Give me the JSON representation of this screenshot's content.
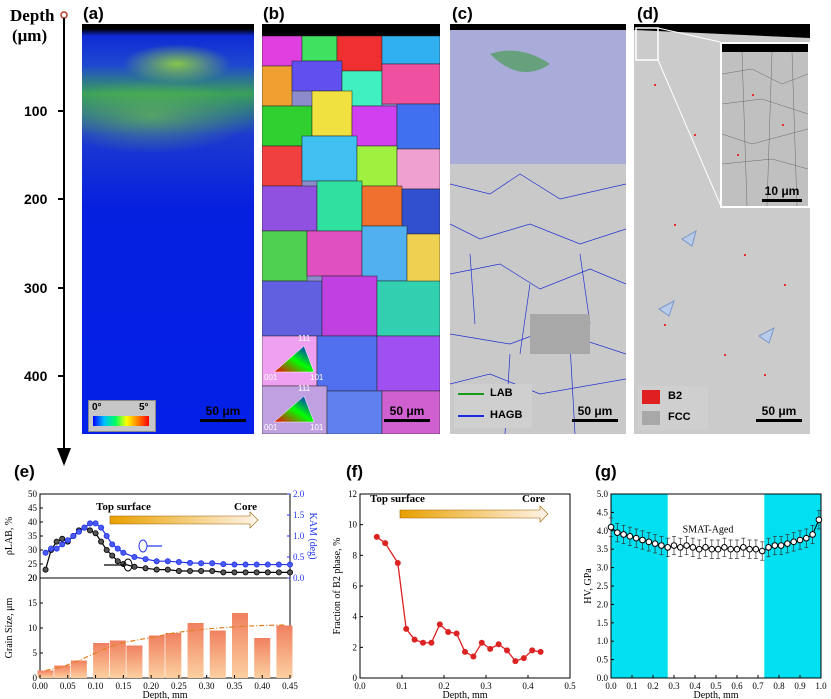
{
  "depth_axis": {
    "title_line1": "Depth",
    "title_line2": "(μm)",
    "ticks": [
      "100",
      "200",
      "300",
      "400"
    ]
  },
  "panels": {
    "a": {
      "label": "(a)",
      "scalebar": "50 μm",
      "kam_min": "0°",
      "kam_max": "5°"
    },
    "b": {
      "label": "(b)",
      "scalebar": "50 μm",
      "ipf": [
        "111",
        "001",
        "101"
      ]
    },
    "c": {
      "label": "(c)",
      "scalebar": "50 μm",
      "legend": [
        "LAB",
        "HAGB"
      ]
    },
    "d": {
      "label": "(d)",
      "scalebar": "50 μm",
      "inset_scalebar": "10 μm",
      "legend": [
        "B2",
        "FCC"
      ]
    }
  },
  "chart_data": [
    {
      "id": "e-top",
      "type": "line",
      "label": "(e)",
      "annotation_left": "Top surface",
      "annotation_right": "Core",
      "ylabel_left": "ρLAB, %",
      "ylabel_right": "KAM (deg)",
      "ylim_left": [
        20,
        50
      ],
      "ylim_right": [
        0,
        2.0
      ],
      "yticks_left": [
        "20",
        "25",
        "30",
        "35",
        "40",
        "45",
        "50"
      ],
      "yticks_right": [
        "0.0",
        "0.5",
        "1.0",
        "1.5",
        "2.0"
      ],
      "series": [
        {
          "name": "ρLAB",
          "color": "#000000",
          "x": [
            0.01,
            0.02,
            0.03,
            0.04,
            0.05,
            0.06,
            0.07,
            0.08,
            0.09,
            0.1,
            0.11,
            0.12,
            0.13,
            0.14,
            0.15,
            0.17,
            0.19,
            0.21,
            0.23,
            0.25,
            0.27,
            0.29,
            0.31,
            0.33,
            0.35,
            0.37,
            0.39,
            0.41,
            0.43,
            0.45
          ],
          "values": [
            23,
            30,
            33,
            34,
            33,
            35,
            37,
            38,
            37,
            36,
            33,
            30,
            28,
            26,
            25,
            24,
            23.5,
            23,
            23,
            22.5,
            22.5,
            22.5,
            22.5,
            22,
            22,
            22,
            22,
            22,
            22,
            22
          ]
        },
        {
          "name": "KAM",
          "color": "#2233ee",
          "x": [
            0.01,
            0.02,
            0.03,
            0.04,
            0.05,
            0.06,
            0.07,
            0.08,
            0.09,
            0.1,
            0.11,
            0.12,
            0.13,
            0.14,
            0.15,
            0.17,
            0.19,
            0.21,
            0.23,
            0.25,
            0.27,
            0.29,
            0.31,
            0.33,
            0.35,
            0.37,
            0.39,
            0.41,
            0.43,
            0.45
          ],
          "values": [
            0.6,
            0.7,
            0.7,
            0.8,
            0.9,
            1.0,
            1.1,
            1.2,
            1.3,
            1.3,
            1.2,
            1.0,
            0.8,
            0.7,
            0.6,
            0.5,
            0.45,
            0.4,
            0.4,
            0.38,
            0.36,
            0.35,
            0.35,
            0.33,
            0.32,
            0.32,
            0.32,
            0.32,
            0.32,
            0.32
          ]
        }
      ]
    },
    {
      "id": "e-bottom",
      "type": "bar",
      "xlabel": "Depth, mm",
      "ylabel": "Grain Size, μm",
      "xlim": [
        0,
        0.45
      ],
      "ylim": [
        0,
        20
      ],
      "xticks": [
        "0.00",
        "0.05",
        "0.10",
        "0.15",
        "0.20",
        "0.25",
        "0.30",
        "0.35",
        "0.40",
        "0.45"
      ],
      "yticks": [
        "0",
        "5",
        "10",
        "15",
        "20"
      ],
      "x": [
        0.01,
        0.04,
        0.07,
        0.11,
        0.14,
        0.17,
        0.21,
        0.24,
        0.28,
        0.32,
        0.36,
        0.4,
        0.44
      ],
      "values": [
        1.5,
        2.5,
        3.5,
        7,
        7.5,
        6.5,
        8.5,
        9,
        11,
        9.5,
        13,
        8,
        10.5
      ],
      "trend": [
        1.5,
        2.2,
        3.5,
        5.5,
        6.8,
        7.5,
        8.3,
        9,
        9.6,
        10,
        10.3,
        10.5,
        10.6
      ]
    },
    {
      "id": "f",
      "type": "line",
      "label": "(f)",
      "annotation_left": "Top surface",
      "annotation_right": "Core",
      "xlabel": "Depth, mm",
      "ylabel": "Fraction of B2 phase, %",
      "xlim": [
        0,
        0.5
      ],
      "ylim": [
        0,
        12
      ],
      "xticks": [
        "0.0",
        "0.1",
        "0.2",
        "0.3",
        "0.4",
        "0.5"
      ],
      "yticks": [
        "0",
        "2",
        "4",
        "6",
        "8",
        "10",
        "12"
      ],
      "x": [
        0.04,
        0.06,
        0.09,
        0.11,
        0.13,
        0.15,
        0.17,
        0.19,
        0.21,
        0.23,
        0.25,
        0.27,
        0.29,
        0.31,
        0.33,
        0.35,
        0.37,
        0.39,
        0.41,
        0.43
      ],
      "values": [
        9.2,
        8.8,
        7.5,
        3.2,
        2.5,
        2.3,
        2.3,
        3.5,
        3.0,
        2.9,
        1.7,
        1.4,
        2.3,
        1.9,
        2.2,
        1.8,
        1.1,
        1.3,
        1.8,
        1.7
      ],
      "color": "#dd2222"
    },
    {
      "id": "g",
      "type": "line",
      "label": "(g)",
      "annotation": "SMAT-Aged",
      "xlabel": "Depth, mm",
      "ylabel": "HV, GPa",
      "xlim": [
        0,
        1.0
      ],
      "ylim": [
        0,
        5.0
      ],
      "xticks": [
        "0.0",
        "0.1",
        "0.2",
        "0.3",
        "0.4",
        "0.5",
        "0.6",
        "0.7",
        "0.8",
        "0.9",
        "1.0"
      ],
      "yticks": [
        "0.0",
        "0.5",
        "1.0",
        "1.5",
        "2.0",
        "2.5",
        "3.0",
        "3.5",
        "4.0",
        "4.5",
        "5.0"
      ],
      "shaded_regions": [
        [
          0,
          0.27
        ],
        [
          0.73,
          1.0
        ]
      ],
      "shade_color": "#00e0f0",
      "x": [
        0.0,
        0.03,
        0.06,
        0.09,
        0.12,
        0.15,
        0.18,
        0.21,
        0.24,
        0.27,
        0.3,
        0.33,
        0.36,
        0.39,
        0.42,
        0.45,
        0.48,
        0.51,
        0.54,
        0.57,
        0.6,
        0.63,
        0.66,
        0.69,
        0.72,
        0.75,
        0.78,
        0.81,
        0.84,
        0.87,
        0.9,
        0.93,
        0.96,
        0.99
      ],
      "values": [
        4.1,
        3.95,
        3.9,
        3.85,
        3.8,
        3.75,
        3.7,
        3.65,
        3.6,
        3.55,
        3.6,
        3.55,
        3.6,
        3.55,
        3.5,
        3.55,
        3.5,
        3.5,
        3.55,
        3.5,
        3.5,
        3.55,
        3.5,
        3.5,
        3.45,
        3.55,
        3.6,
        3.6,
        3.65,
        3.7,
        3.75,
        3.8,
        3.9,
        4.3
      ],
      "error": 0.25
    }
  ]
}
